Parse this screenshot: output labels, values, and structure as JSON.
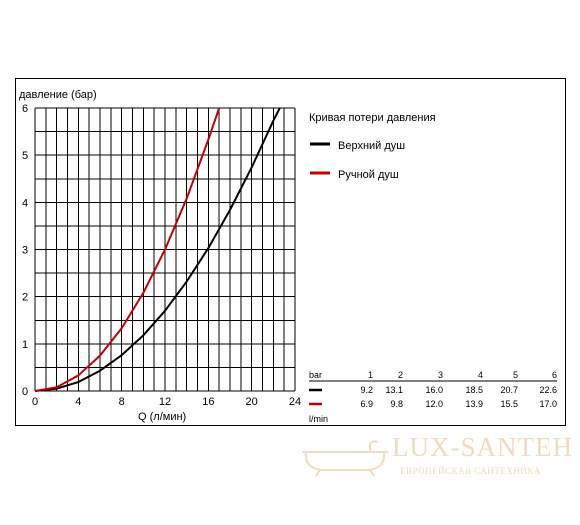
{
  "chart_data": {
    "type": "line",
    "ylabel": "давление (бар)",
    "xlabel": "Q (л/мин)",
    "xlim": [
      0,
      24
    ],
    "ylim": [
      0,
      6
    ],
    "x_ticks": [
      "0",
      "4",
      "8",
      "12",
      "16",
      "20",
      "24"
    ],
    "y_ticks": [
      "0",
      "1",
      "2",
      "3",
      "4",
      "5",
      "6"
    ],
    "grid": true,
    "legend_title": "Кривая потери давления",
    "series": [
      {
        "name": "Верхний душ",
        "color": "#000000",
        "points": [
          [
            0,
            0
          ],
          [
            2,
            0.05
          ],
          [
            4,
            0.19
          ],
          [
            6,
            0.43
          ],
          [
            8,
            0.76
          ],
          [
            10,
            1.18
          ],
          [
            12,
            1.7
          ],
          [
            14,
            2.32
          ],
          [
            16,
            3.03
          ],
          [
            18,
            3.84
          ],
          [
            20,
            4.74
          ],
          [
            22,
            5.73
          ],
          [
            22.6,
            6.0
          ]
        ]
      },
      {
        "name": "Ручной душ",
        "color": "#c00000",
        "points": [
          [
            0,
            0
          ],
          [
            2,
            0.08
          ],
          [
            4,
            0.33
          ],
          [
            6,
            0.75
          ],
          [
            8,
            1.33
          ],
          [
            10,
            2.08
          ],
          [
            12,
            3.0
          ],
          [
            14,
            4.08
          ],
          [
            16,
            5.33
          ],
          [
            17,
            6.0
          ]
        ]
      }
    ]
  },
  "table": {
    "header_unit": "bar",
    "header_values": [
      "1",
      "2",
      "3",
      "4",
      "5",
      "6"
    ],
    "rows": [
      {
        "color": "#000000",
        "values": [
          "9.2",
          "13.1",
          "16.0",
          "18.5",
          "20.7",
          "22.6"
        ]
      },
      {
        "color": "#c00000",
        "values": [
          "6.9",
          "9.8",
          "12.0",
          "13.9",
          "15.5",
          "17.0"
        ]
      }
    ],
    "footer_unit": "l/min"
  },
  "watermark": {
    "title": "LUX-SANTEH",
    "subtitle": "ЕВРОПЕЙСКАЯ САНТЕХНИКА"
  }
}
